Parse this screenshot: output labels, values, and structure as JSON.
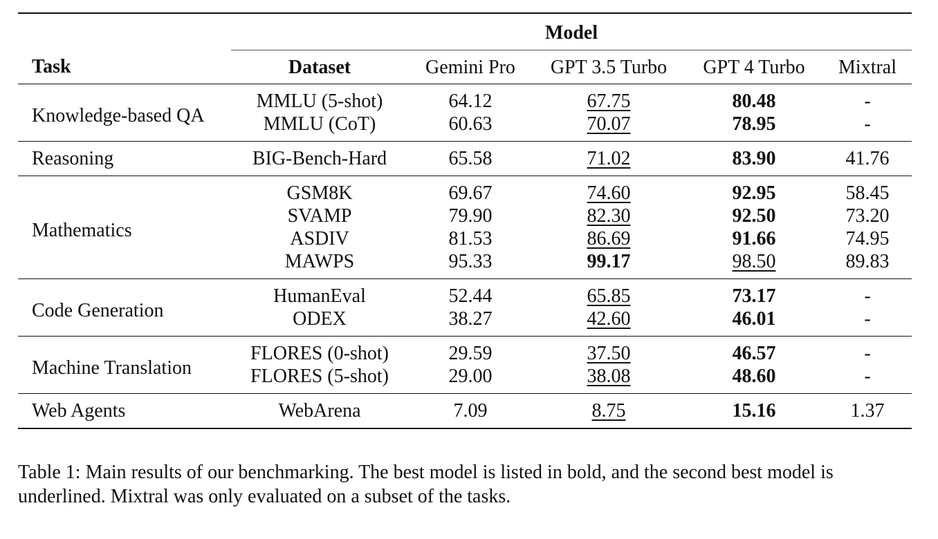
{
  "table": {
    "header": {
      "model_group": "Model",
      "task": "Task",
      "dataset": "Dataset",
      "models": [
        "Gemini Pro",
        "GPT 3.5 Turbo",
        "GPT 4 Turbo",
        "Mixtral"
      ]
    },
    "groups": [
      {
        "task": "Knowledge-based QA",
        "rows": [
          {
            "dataset": "MMLU (5-shot)",
            "values": [
              "64.12",
              "67.75",
              "80.48",
              "-"
            ],
            "best": 2,
            "second": 1
          },
          {
            "dataset": "MMLU (CoT)",
            "values": [
              "60.63",
              "70.07",
              "78.95",
              "-"
            ],
            "best": 2,
            "second": 1
          }
        ]
      },
      {
        "task": "Reasoning",
        "rows": [
          {
            "dataset": "BIG-Bench-Hard",
            "values": [
              "65.58",
              "71.02",
              "83.90",
              "41.76"
            ],
            "best": 2,
            "second": 1
          }
        ]
      },
      {
        "task": "Mathematics",
        "rows": [
          {
            "dataset": "GSM8K",
            "values": [
              "69.67",
              "74.60",
              "92.95",
              "58.45"
            ],
            "best": 2,
            "second": 1
          },
          {
            "dataset": "SVAMP",
            "values": [
              "79.90",
              "82.30",
              "92.50",
              "73.20"
            ],
            "best": 2,
            "second": 1
          },
          {
            "dataset": "ASDIV",
            "values": [
              "81.53",
              "86.69",
              "91.66",
              "74.95"
            ],
            "best": 2,
            "second": 1
          },
          {
            "dataset": "MAWPS",
            "values": [
              "95.33",
              "99.17",
              "98.50",
              "89.83"
            ],
            "best": 1,
            "second": 2
          }
        ]
      },
      {
        "task": "Code Generation",
        "rows": [
          {
            "dataset": "HumanEval",
            "values": [
              "52.44",
              "65.85",
              "73.17",
              "-"
            ],
            "best": 2,
            "second": 1
          },
          {
            "dataset": "ODEX",
            "values": [
              "38.27",
              "42.60",
              "46.01",
              "-"
            ],
            "best": 2,
            "second": 1
          }
        ]
      },
      {
        "task": "Machine Translation",
        "rows": [
          {
            "dataset": "FLORES (0-shot)",
            "values": [
              "29.59",
              "37.50",
              "46.57",
              "-"
            ],
            "best": 2,
            "second": 1
          },
          {
            "dataset": "FLORES (5-shot)",
            "values": [
              "29.00",
              "38.08",
              "48.60",
              "-"
            ],
            "best": 2,
            "second": 1
          }
        ]
      },
      {
        "task": "Web Agents",
        "rows": [
          {
            "dataset": "WebArena",
            "values": [
              "7.09",
              "8.75",
              "15.16",
              "1.37"
            ],
            "best": 2,
            "second": 1
          }
        ]
      }
    ]
  },
  "caption": "Table 1: Main results of our benchmarking. The best model is listed in bold, and the second best model is underlined. Mixtral was only evaluated on a subset of the tasks."
}
